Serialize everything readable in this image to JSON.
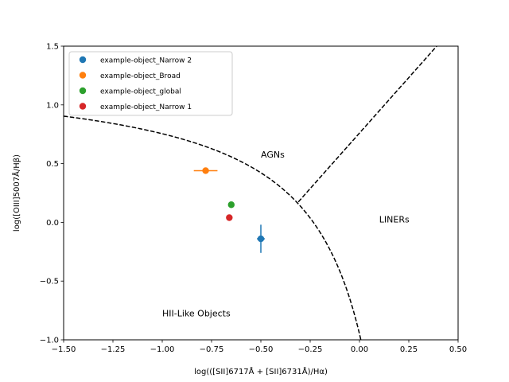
{
  "chart_data": {
    "type": "scatter",
    "title": "",
    "xlabel": "log(([SII]6717Å + [SII]6731Å)/Hα)",
    "ylabel": "log([OIII]5007Å/Hβ)",
    "xlim": [
      -1.5,
      0.5
    ],
    "ylim": [
      -1.0,
      1.5
    ],
    "x_ticks": [
      -1.5,
      -1.25,
      -1.0,
      -0.75,
      -0.5,
      -0.25,
      0.0,
      0.25,
      0.5
    ],
    "y_ticks": [
      -1.0,
      -0.5,
      0.0,
      0.5,
      1.0,
      1.5
    ],
    "x_tick_labels": [
      "−1.50",
      "−1.25",
      "−1.00",
      "−0.75",
      "−0.50",
      "−0.25",
      "0.00",
      "0.25",
      "0.50"
    ],
    "y_tick_labels": [
      "−1.0",
      "−0.5",
      "0.0",
      "0.5",
      "1.0",
      "1.5"
    ],
    "grid": false,
    "legend_position": "top-left",
    "series": [
      {
        "name": "example-object_Narrow 2",
        "color": "#1f77b4",
        "x": -0.5,
        "y": -0.14,
        "xerr": 0.02,
        "yerr": 0.12
      },
      {
        "name": "example-object_Broad",
        "color": "#ff7f0e",
        "x": -0.78,
        "y": 0.44,
        "xerr": 0.06,
        "yerr": 0.0
      },
      {
        "name": "example-object_global",
        "color": "#2ca02c",
        "x": -0.65,
        "y": 0.15,
        "xerr": 0.0,
        "yerr": 0.0
      },
      {
        "name": "example-object_Narrow 1",
        "color": "#d62728",
        "x": -0.66,
        "y": 0.04,
        "xerr": 0.0,
        "yerr": 0.0
      }
    ],
    "annotations": [
      {
        "text": "AGNs",
        "x": -0.5,
        "y": 0.55
      },
      {
        "text": "LINERs",
        "x": 0.1,
        "y": 0.0
      },
      {
        "text": "HII-Like Objects",
        "x": -1.0,
        "y": -0.8
      }
    ],
    "boundaries": [
      {
        "name": "max-starburst",
        "style": "dashed",
        "formula": "0.72/(x-0.32)+1.30",
        "x_range": [
          -1.5,
          0.02
        ]
      },
      {
        "name": "seyfert-liner",
        "style": "dashed",
        "formula": "1.89*x+0.76",
        "x_range": [
          -0.31,
          0.5
        ]
      }
    ]
  }
}
